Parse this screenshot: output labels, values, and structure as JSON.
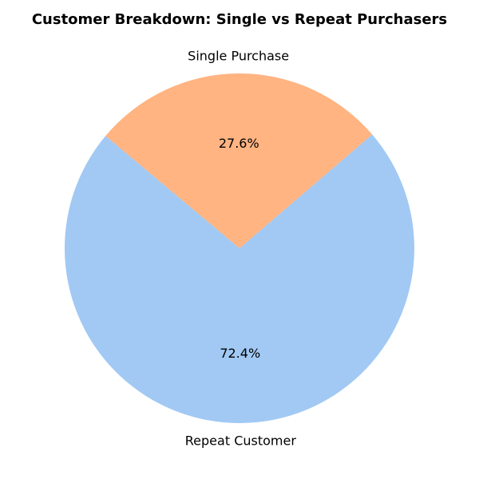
{
  "chart_data": {
    "type": "pie",
    "title": "Customer Breakdown: Single vs Repeat Purchasers",
    "categories": [
      "Repeat Customer",
      "Single Purchase"
    ],
    "values": [
      72.4,
      27.6
    ],
    "percent_labels": [
      "72.4%",
      "27.6%"
    ],
    "colors": [
      "#a1c9f4",
      "#ffb482"
    ],
    "start_angle_deg": 140,
    "direction": "counterclockwise"
  }
}
